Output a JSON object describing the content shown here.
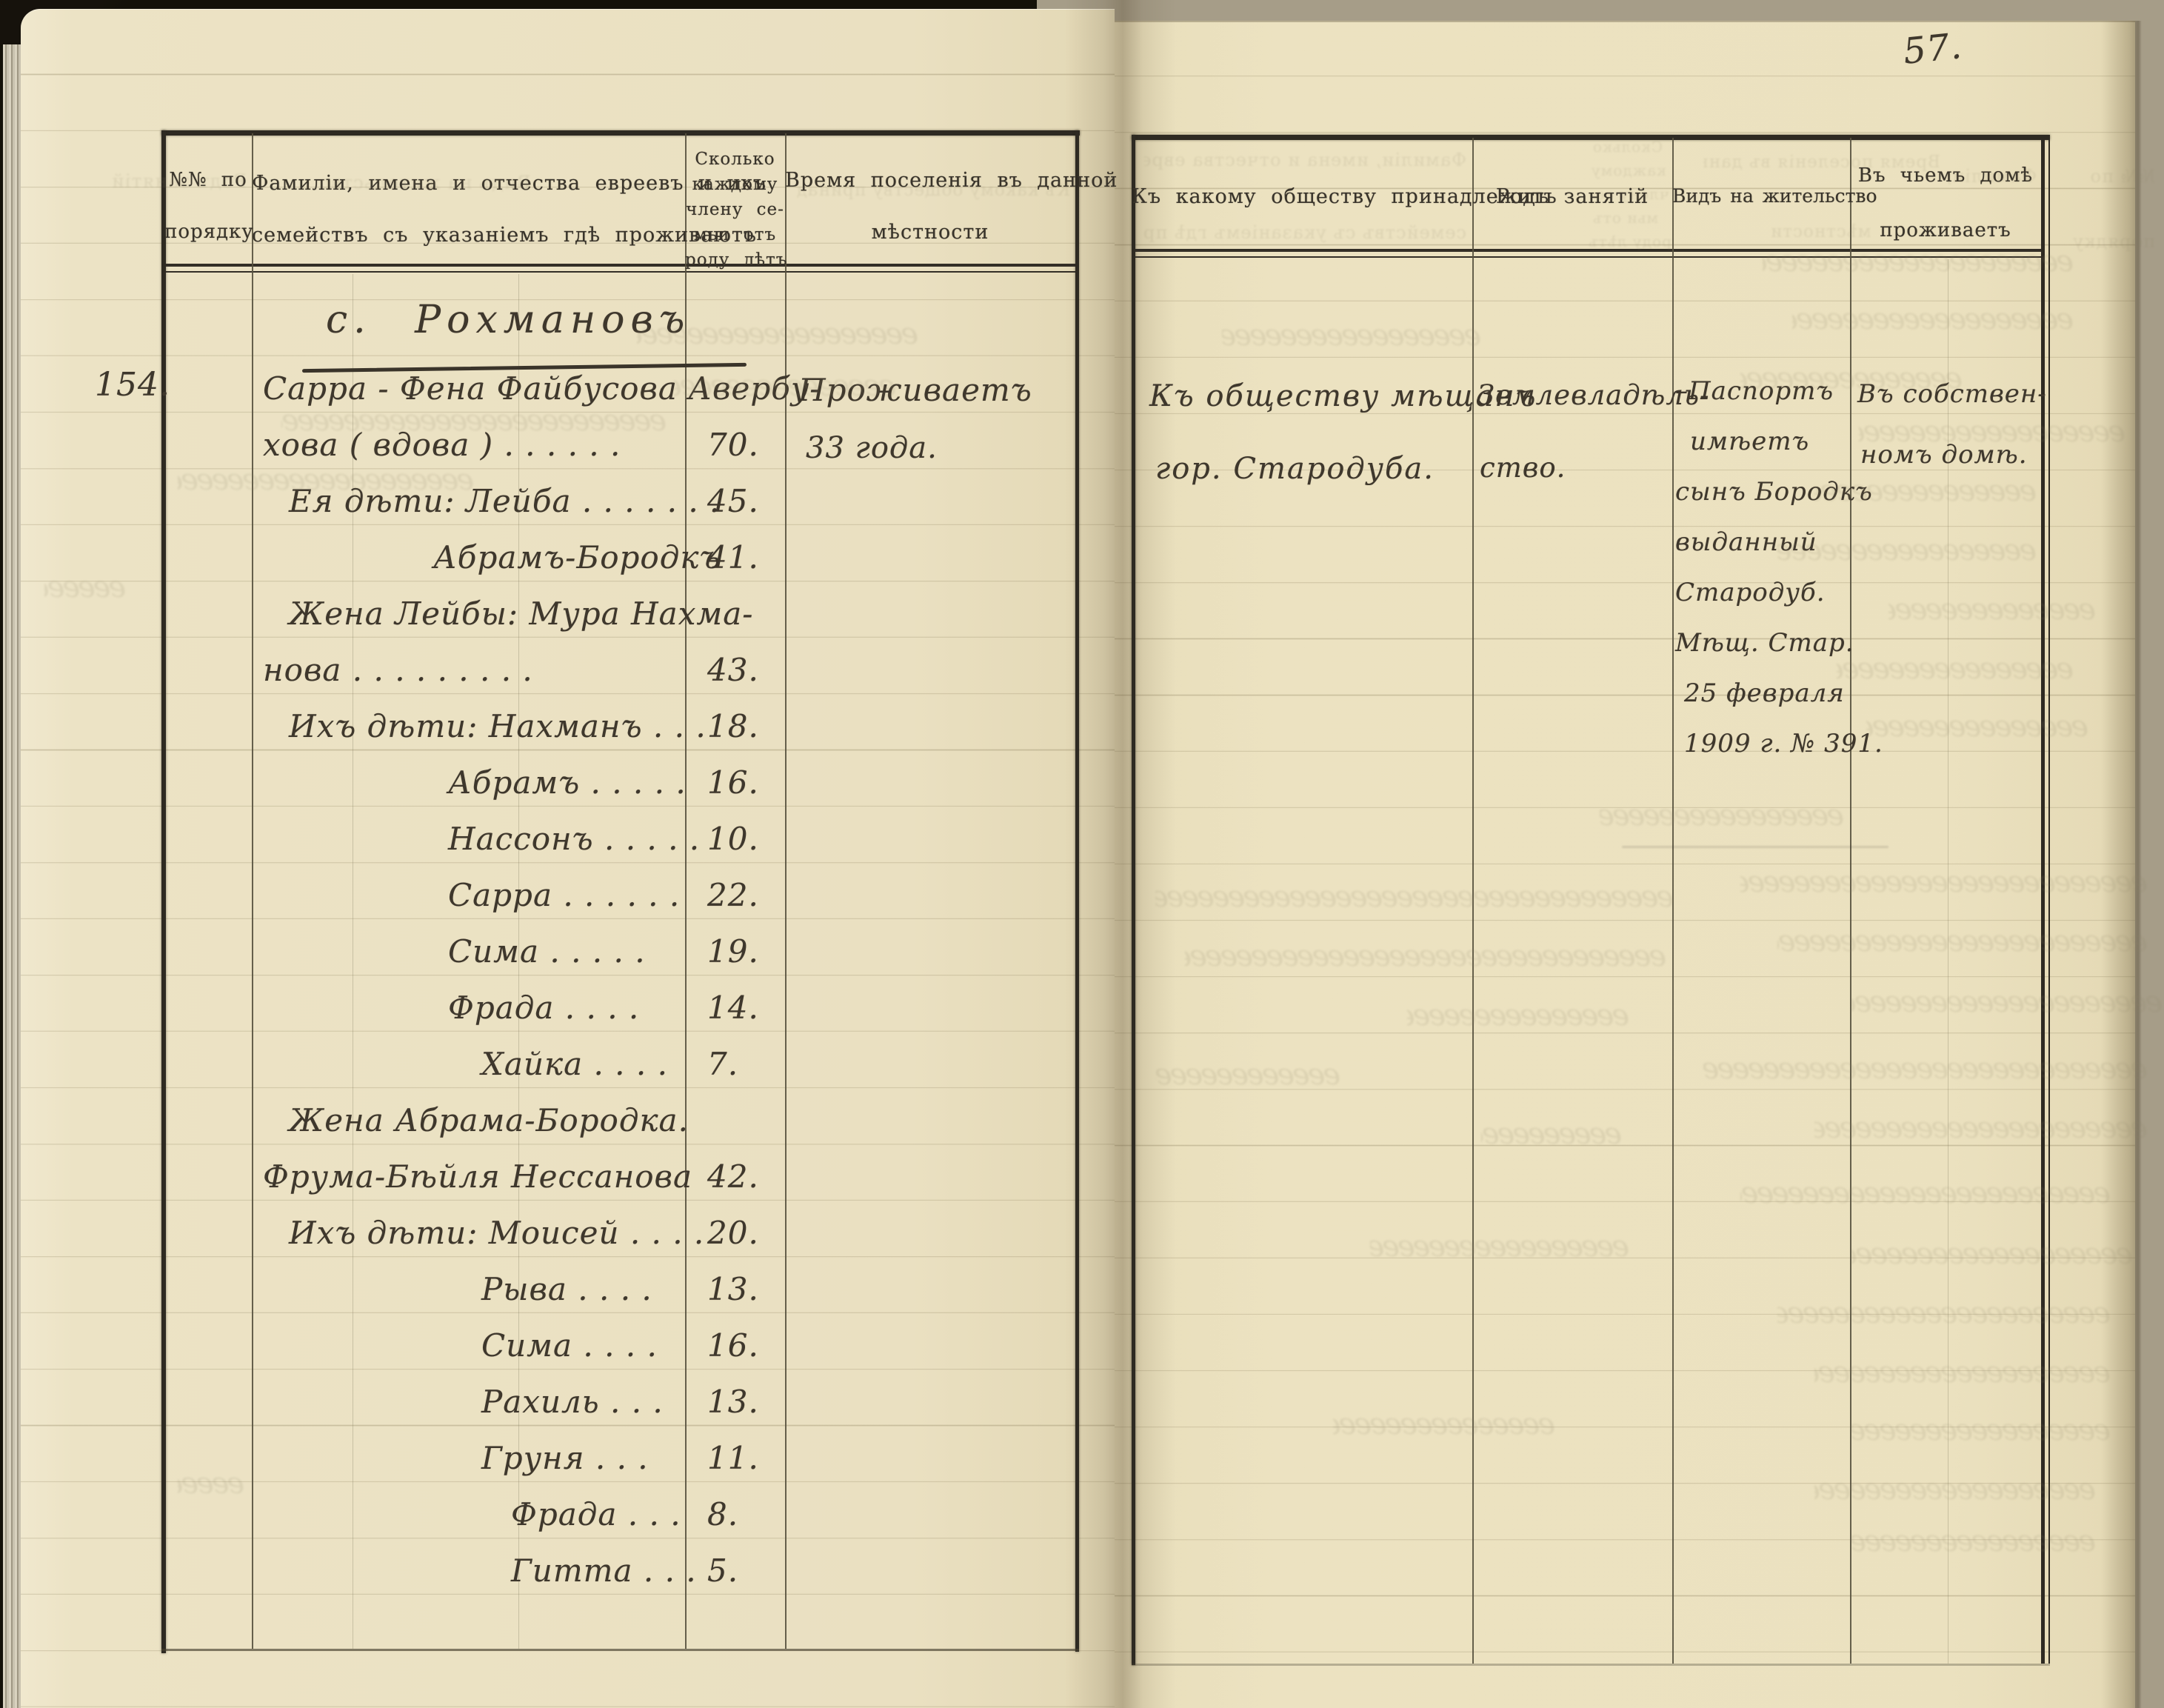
{
  "page_number": "57.",
  "section_heading": "с. Рохмановъ",
  "colors": {
    "paper_left": "#eae0c1",
    "paper_right": "#ebe1bf",
    "ink": "#3e372c",
    "print": "#38332a"
  },
  "left_table": {
    "header": {
      "no_line1": "№№ по",
      "no_line2": "порядку",
      "names_line1": "Фамиліи, имена и отчества евреевъ и ихъ",
      "names_line2": "семействъ съ указаніемъ гдѣ проживаютъ",
      "age_lines": [
        "Сколько",
        "каждому",
        "члену се-",
        "мьи отъ",
        "роду лѣтъ"
      ],
      "settled_line1": "Время поселенія въ данной",
      "settled_line2": "мѣстности"
    },
    "entry_number": "154.",
    "rows": [
      {
        "name": "Сарра - Фена Файбусова Авербу-",
        "age": "",
        "indent": 0
      },
      {
        "name": "хова  ( вдова )  .   .   .   .   .   .",
        "age": "70.",
        "indent": 0
      },
      {
        "name": "Ея дѣти:    Лейба . . . . . .  .",
        "age": "45.",
        "indent": 1
      },
      {
        "name": "Абрамъ-Бородкъ",
        "age": "41.",
        "indent": 3
      },
      {
        "name": "Жена Лейбы:  Мура Нахма-",
        "age": "",
        "indent": 1
      },
      {
        "name": "нова  .   .   .   .   .   .   .   .   .",
        "age": "43.",
        "indent": 0
      },
      {
        "name": "Ихъ дѣти:   Нахманъ . . .",
        "age": "18.",
        "indent": 1
      },
      {
        "name": "Абрамъ . . . . .",
        "age": "16.",
        "indent": 4
      },
      {
        "name": "Нассонъ . . . . .",
        "age": "10.",
        "indent": 4
      },
      {
        "name": "Сарра . . . . . .",
        "age": "22.",
        "indent": 4
      },
      {
        "name": "Сима . . . . .",
        "age": "19.",
        "indent": 4
      },
      {
        "name": "Фрада . . . .",
        "age": "14.",
        "indent": 4
      },
      {
        "name": "Хайка . . . .",
        "age": "7.",
        "indent": 5
      },
      {
        "name": "Жена Абрама-Бородка.",
        "age": "",
        "indent": 1
      },
      {
        "name": "Фрума-Бѣйля Нессанова",
        "age": "42.",
        "indent": 0
      },
      {
        "name": "Ихъ дѣти:    Моисей . . . .",
        "age": "20.",
        "indent": 1
      },
      {
        "name": "Рыва . . . .",
        "age": "13.",
        "indent": 5
      },
      {
        "name": "Сима . . . .",
        "age": "16.",
        "indent": 5
      },
      {
        "name": "Рахиль . . .",
        "age": "13.",
        "indent": 5
      },
      {
        "name": "Груня . . .",
        "age": "11.",
        "indent": 5
      },
      {
        "name": "Фрада . . .",
        "age": "8.",
        "indent": 6
      },
      {
        "name": "Гитта . . .",
        "age": "5.",
        "indent": 6
      }
    ],
    "settlement_lines": [
      "Проживаетъ",
      "33 года."
    ]
  },
  "right_table": {
    "header": {
      "society": "Къ какому обществу принадлежитъ",
      "occupation": "Родъ занятій",
      "permit": "Видъ на жительство",
      "house_line1": "Въ чьемъ домѣ",
      "house_line2": "проживаетъ"
    },
    "society_lines": [
      "Къ обществу мѣщанъ",
      "гор. Стародуба."
    ],
    "occupation_lines": [
      "Землевладѣль-",
      "ство."
    ],
    "permit_lines": [
      "–Паспортъ",
      "имѣетъ",
      "сынъ Бородкъ",
      "выданный",
      "Стародуб.",
      "Мѣщ. Стар.",
      "25 февраля",
      "1909 г. № 391."
    ],
    "house_lines": [
      "Въ собствен-",
      "номъ домѣ."
    ]
  },
  "echoes": {
    "rod": "Родъ занятій",
    "vid": "Видъ на жительство",
    "society": "Къ какому обществу принадлеж",
    "fam1": "Фамиліи, имена и отчества евреевъ и ихъ",
    "fam2": "семействъ съ указаніемъ гдѣ проживаютъ",
    "age": [
      "Сколько",
      "каждому",
      "члену се-",
      "мьи отъ",
      "роду лѣтъ"
    ],
    "vremya1": "Время поселенія въ данной",
    "vremya2": "мѣстности",
    "no1": "№№ по",
    "no2": "порядку",
    "fam3": "Фамиліи,"
  }
}
